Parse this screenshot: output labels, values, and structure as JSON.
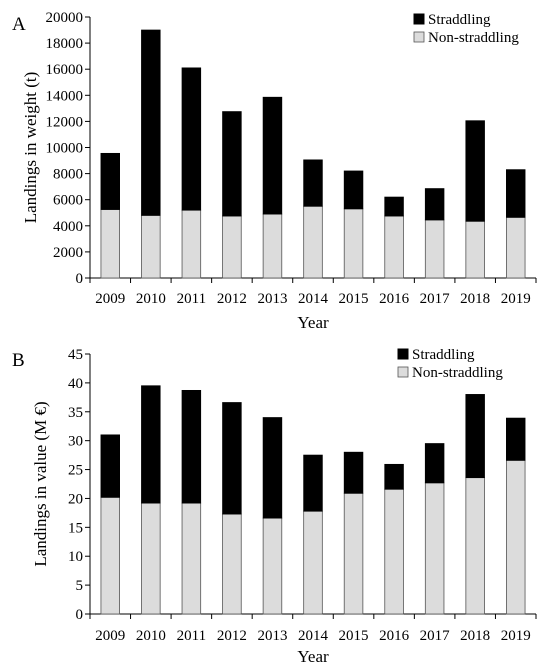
{
  "colors": {
    "straddling": "#000000",
    "non_straddling": "#dcdcdc",
    "bar_outline": "#555555",
    "axis": "#000000"
  },
  "chart_data": [
    {
      "type": "bar",
      "stacked": true,
      "panel_label": "A",
      "xlabel": "Year",
      "ylabel": "Landings in weight (t)",
      "ylim": [
        0,
        20000
      ],
      "yticks": [
        0,
        2000,
        4000,
        6000,
        8000,
        10000,
        12000,
        14000,
        16000,
        18000,
        20000
      ],
      "grid": false,
      "legend": "top-right",
      "categories": [
        "2009",
        "2010",
        "2011",
        "2012",
        "2013",
        "2014",
        "2015",
        "2016",
        "2017",
        "2018",
        "2019"
      ],
      "series": [
        {
          "name": "Non-straddling",
          "values": [
            5250,
            4800,
            5200,
            4750,
            4900,
            5500,
            5300,
            4750,
            4450,
            4350,
            4650
          ]
        },
        {
          "name": "Straddling",
          "values": [
            4300,
            14200,
            10900,
            8000,
            8950,
            3550,
            2900,
            1450,
            2400,
            7700,
            3650
          ]
        }
      ],
      "legend_order": [
        "Straddling",
        "Non-straddling"
      ]
    },
    {
      "type": "bar",
      "stacked": true,
      "panel_label": "B",
      "xlabel": "Year",
      "ylabel": "Landings in value (M €)",
      "ylim": [
        0,
        45
      ],
      "yticks": [
        0,
        5,
        10,
        15,
        20,
        25,
        30,
        35,
        40,
        45
      ],
      "grid": false,
      "legend": "top-right",
      "categories": [
        "2009",
        "2010",
        "2011",
        "2012",
        "2013",
        "2014",
        "2015",
        "2016",
        "2017",
        "2018",
        "2019"
      ],
      "series": [
        {
          "name": "Non-straddling",
          "values": [
            20.2,
            19.2,
            19.2,
            17.3,
            16.6,
            17.8,
            20.9,
            21.6,
            22.7,
            23.6,
            26.6
          ]
        },
        {
          "name": "Straddling",
          "values": [
            10.8,
            20.3,
            19.5,
            19.3,
            17.4,
            9.7,
            7.1,
            4.3,
            6.8,
            14.4,
            7.3
          ]
        }
      ],
      "legend_order": [
        "Straddling",
        "Non-straddling"
      ]
    }
  ]
}
